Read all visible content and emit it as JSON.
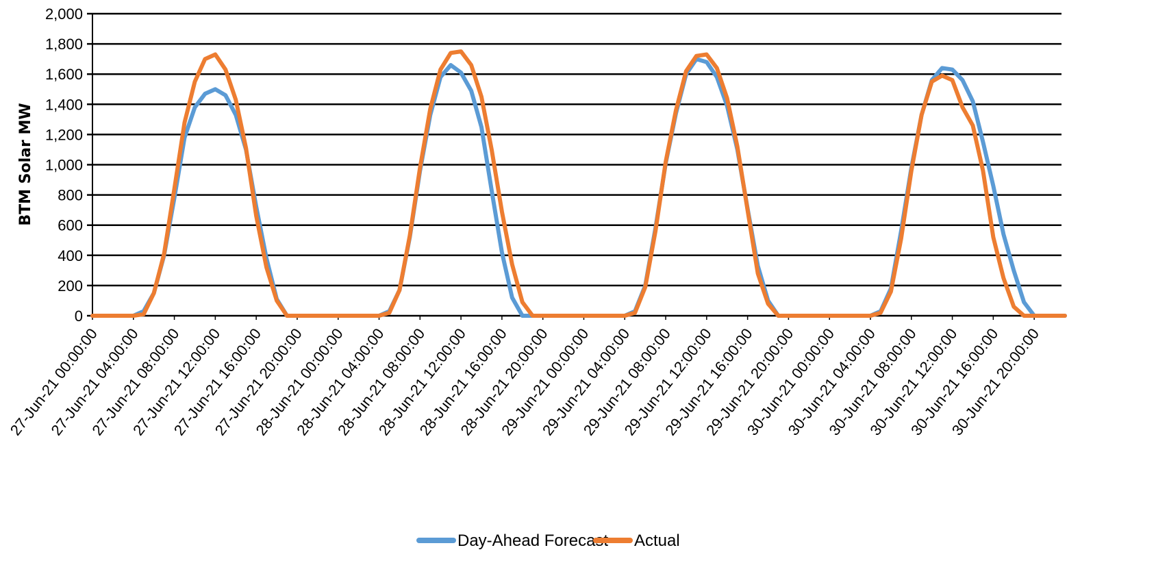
{
  "chart_data": {
    "type": "line",
    "title": "",
    "xlabel": "",
    "ylabel": "BTM Solar MW",
    "ylim": [
      0,
      2000
    ],
    "y_ticks": [
      0,
      200,
      400,
      600,
      800,
      1000,
      1200,
      1400,
      1600,
      1800,
      2000
    ],
    "y_tick_labels": [
      "0",
      "200",
      "400",
      "600",
      "800",
      "1,000",
      "1,200",
      "1,400",
      "1,600",
      "1,800",
      "2,000"
    ],
    "x_start": "27-Jun-21 00:00:00",
    "x_step_hours": 1,
    "x_tick_labels": [
      "27-Jun-21 00:00:00",
      "27-Jun-21 04:00:00",
      "27-Jun-21 08:00:00",
      "27-Jun-21 12:00:00",
      "27-Jun-21 16:00:00",
      "27-Jun-21 20:00:00",
      "28-Jun-21 00:00:00",
      "28-Jun-21 04:00:00",
      "28-Jun-21 08:00:00",
      "28-Jun-21 12:00:00",
      "28-Jun-21 16:00:00",
      "28-Jun-21 20:00:00",
      "29-Jun-21 00:00:00",
      "29-Jun-21 04:00:00",
      "29-Jun-21 08:00:00",
      "29-Jun-21 12:00:00",
      "29-Jun-21 16:00:00",
      "29-Jun-21 20:00:00",
      "30-Jun-21 00:00:00",
      "30-Jun-21 04:00:00",
      "30-Jun-21 08:00:00",
      "30-Jun-21 12:00:00",
      "30-Jun-21 16:00:00",
      "30-Jun-21 20:00:00"
    ],
    "grid": true,
    "legend_position": "bottom",
    "series": [
      {
        "name": "Day-Ahead Forecast",
        "color": "#5b9bd5",
        "values": [
          0,
          0,
          0,
          0,
          0,
          30,
          150,
          400,
          780,
          1180,
          1380,
          1470,
          1500,
          1460,
          1330,
          1100,
          720,
          380,
          110,
          0,
          0,
          0,
          0,
          0,
          0,
          0,
          0,
          0,
          0,
          30,
          170,
          520,
          960,
          1330,
          1580,
          1660,
          1610,
          1490,
          1250,
          830,
          420,
          120,
          0,
          0,
          0,
          0,
          0,
          0,
          0,
          0,
          0,
          0,
          0,
          30,
          200,
          580,
          1010,
          1340,
          1600,
          1700,
          1680,
          1580,
          1390,
          1100,
          710,
          330,
          100,
          0,
          0,
          0,
          0,
          0,
          0,
          0,
          0,
          0,
          0,
          30,
          180,
          560,
          980,
          1330,
          1560,
          1640,
          1630,
          1560,
          1420,
          1150,
          860,
          540,
          300,
          90,
          0,
          0,
          0,
          0
        ]
      },
      {
        "name": "Actual",
        "color": "#ed7d31",
        "values": [
          0,
          0,
          0,
          0,
          0,
          10,
          150,
          410,
          840,
          1280,
          1550,
          1700,
          1730,
          1630,
          1430,
          1110,
          660,
          320,
          100,
          0,
          0,
          0,
          0,
          0,
          0,
          0,
          0,
          0,
          0,
          20,
          170,
          530,
          980,
          1370,
          1630,
          1740,
          1750,
          1660,
          1450,
          1100,
          690,
          340,
          90,
          0,
          0,
          0,
          0,
          0,
          0,
          0,
          0,
          0,
          0,
          20,
          190,
          560,
          1020,
          1360,
          1620,
          1720,
          1730,
          1640,
          1440,
          1120,
          700,
          280,
          80,
          0,
          0,
          0,
          0,
          0,
          0,
          0,
          0,
          0,
          0,
          20,
          160,
          510,
          960,
          1330,
          1550,
          1590,
          1560,
          1380,
          1260,
          960,
          520,
          250,
          60,
          0,
          0,
          0,
          0,
          0
        ]
      }
    ]
  }
}
